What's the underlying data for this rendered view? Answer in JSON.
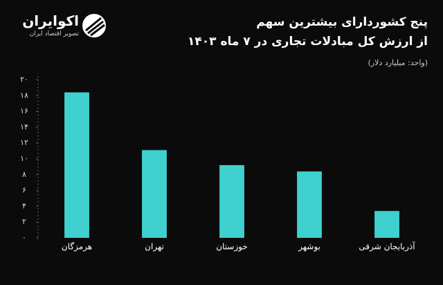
{
  "brand": {
    "name": "اکوایران",
    "tagline": "تصویر اقتصاد ایران"
  },
  "chart_data": {
    "type": "bar",
    "title": "پنج کشوردارای بیشترین سهم",
    "subtitle": "از ارزش کل مبادلات تجاری در ۷ ماه ۱۴۰۳",
    "unit_note": "(واحد: میلیارد دلار)",
    "categories": [
      "هرمزگان",
      "تهران",
      "خوزستان",
      "بوشهر",
      "آذربایجان شرقی"
    ],
    "values": [
      18.4,
      11.1,
      9.2,
      8.4,
      3.4
    ],
    "color": "#3ed1cf",
    "ylim": [
      0,
      20
    ],
    "yticks": [
      {
        "value": 0,
        "label": "۰"
      },
      {
        "value": 2,
        "label": "۲"
      },
      {
        "value": 4,
        "label": "۴"
      },
      {
        "value": 6,
        "label": "۶"
      },
      {
        "value": 8,
        "label": "۸"
      },
      {
        "value": 10,
        "label": "۱۰"
      },
      {
        "value": 12,
        "label": "۱۲"
      },
      {
        "value": 14,
        "label": "۱۴"
      },
      {
        "value": 16,
        "label": "۱۶"
      },
      {
        "value": 18,
        "label": "۱۸"
      },
      {
        "value": 20,
        "label": "۲۰"
      }
    ],
    "grid": false
  }
}
